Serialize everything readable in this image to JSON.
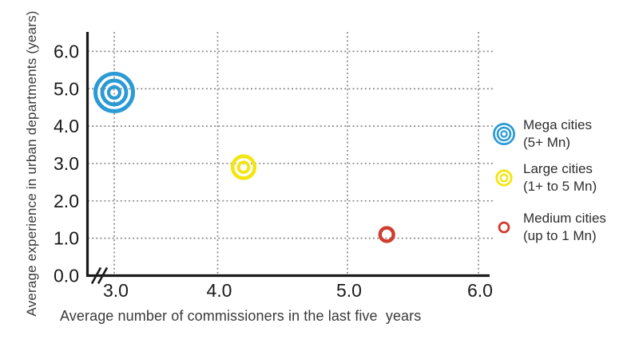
{
  "page": {
    "background": "#ffffff"
  },
  "chart_data": {
    "type": "scatter",
    "title": "",
    "xlabel": "Average number of commissioners in the last five  years",
    "ylabel": "Average experience in urban departments (years)",
    "xticks": [
      3.0,
      4.0,
      5.0,
      6.0
    ],
    "xtick_labels": [
      "3.0",
      "4.0",
      "5.0",
      "6.0"
    ],
    "yticks": [
      0.0,
      1.0,
      2.0,
      3.0,
      4.0,
      5.0,
      6.0
    ],
    "ytick_labels": [
      "0.0",
      "1.0",
      "2.0",
      "3.0",
      "4.0",
      "5.0",
      "6.0"
    ],
    "xlim": [
      2.8,
      6.2
    ],
    "ylim": [
      0.0,
      6.5
    ],
    "grid": true,
    "grid_style": "dotted",
    "x_axis_break": true,
    "legend_position": "right",
    "colors": {
      "axis": "#1a1a1a",
      "tick_text": "#1a1a1a",
      "grid": "#8c8c8c",
      "label_text": "#3a3a3a",
      "legend_text": "#2e2e2e"
    },
    "series": [
      {
        "name": "Mega cities (5+ Mn)",
        "legend_line1": "Mega cities",
        "legend_line2": "(5+ Mn)",
        "color": "#2b9ad5",
        "marker": "triple-ring-bullseye",
        "rings": 3,
        "points": [
          {
            "x": 3.0,
            "y": 4.9
          }
        ]
      },
      {
        "name": "Large cities (1+ to 5 Mn)",
        "legend_line1": "Large cities",
        "legend_line2": "(1+ to 5 Mn)",
        "color": "#f3e511",
        "marker": "double-ring",
        "rings": 2,
        "points": [
          {
            "x": 4.2,
            "y": 2.9
          }
        ]
      },
      {
        "name": "Medium cities (up to 1 Mn)",
        "legend_line1": "Medium cities",
        "legend_line2": "(up to 1 Mn)",
        "color": "#d03c2e",
        "marker": "single-ring",
        "rings": 1,
        "points": [
          {
            "x": 5.3,
            "y": 1.1
          }
        ]
      }
    ]
  }
}
